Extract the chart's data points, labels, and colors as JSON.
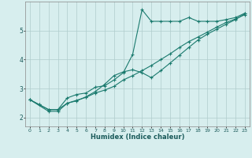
{
  "xlabel": "Humidex (Indice chaleur)",
  "background_color": "#d7eeee",
  "grid_color": "#b0cccc",
  "line_color": "#1a7a6e",
  "xlim": [
    -0.5,
    23.5
  ],
  "ylim": [
    1.7,
    6.0
  ],
  "yticks": [
    2,
    3,
    4,
    5
  ],
  "xticks": [
    0,
    1,
    2,
    3,
    4,
    5,
    6,
    7,
    8,
    9,
    10,
    11,
    12,
    13,
    14,
    15,
    16,
    17,
    18,
    19,
    20,
    21,
    22,
    23
  ],
  "line1_x": [
    0,
    1,
    2,
    3,
    4,
    5,
    6,
    7,
    8,
    9,
    10,
    11,
    12,
    13,
    14,
    15,
    16,
    17,
    18,
    19,
    20,
    21,
    22,
    23
  ],
  "line1_y": [
    2.62,
    2.45,
    2.28,
    2.28,
    2.68,
    2.8,
    2.85,
    3.05,
    3.1,
    3.3,
    3.55,
    4.18,
    5.72,
    5.32,
    5.32,
    5.32,
    5.32,
    5.45,
    5.32,
    5.32,
    5.32,
    5.38,
    5.45,
    5.6
  ],
  "line2_x": [
    0,
    2,
    3,
    4,
    5,
    6,
    7,
    8,
    9,
    10,
    11,
    12,
    13,
    14,
    15,
    16,
    17,
    18,
    19,
    20,
    21,
    22,
    23
  ],
  "line2_y": [
    2.62,
    2.22,
    2.22,
    2.5,
    2.58,
    2.72,
    2.9,
    3.15,
    3.45,
    3.58,
    3.65,
    3.55,
    3.38,
    3.62,
    3.88,
    4.15,
    4.42,
    4.68,
    4.88,
    5.05,
    5.22,
    5.38,
    5.58
  ],
  "line3_x": [
    0,
    1,
    2,
    3,
    4,
    5,
    6,
    7,
    8,
    9,
    10,
    11,
    12,
    13,
    14,
    15,
    16,
    17,
    18,
    19,
    20,
    21,
    22,
    23
  ],
  "line3_y": [
    2.62,
    2.45,
    2.28,
    2.28,
    2.5,
    2.6,
    2.7,
    2.85,
    2.95,
    3.08,
    3.3,
    3.45,
    3.62,
    3.8,
    4.0,
    4.2,
    4.42,
    4.62,
    4.78,
    4.95,
    5.12,
    5.28,
    5.4,
    5.55
  ]
}
